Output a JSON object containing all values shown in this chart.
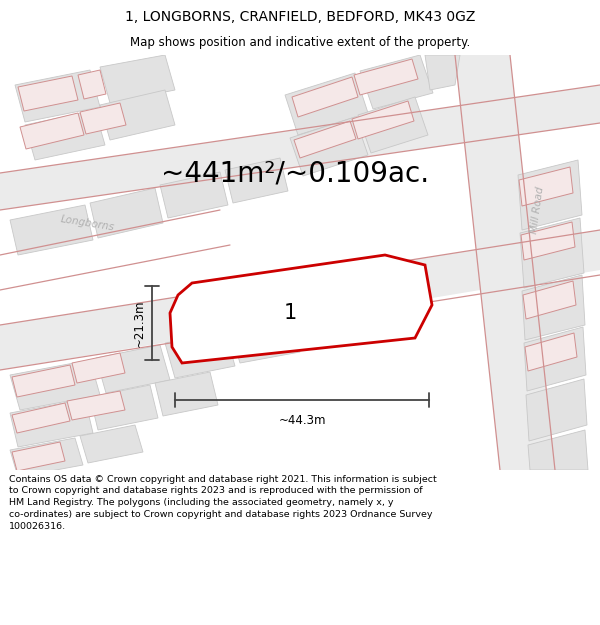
{
  "title": "1, LONGBORNS, CRANFIELD, BEDFORD, MK43 0GZ",
  "subtitle": "Map shows position and indicative extent of the property.",
  "footer": "Contains OS data © Crown copyright and database right 2021. This information is subject to Crown copyright and database rights 2023 and is reproduced with the permission of HM Land Registry. The polygons (including the associated geometry, namely x, y co-ordinates) are subject to Crown copyright and database rights 2023 Ordnance Survey 100026316.",
  "area_text": "~441m²/~0.109ac.",
  "width_label": "~44.3m",
  "height_label": "~21.3m",
  "property_number": "1",
  "map_bg": "#f7f7f7",
  "bld_fill": "#e2e2e2",
  "bld_edge": "#c8c8c8",
  "pink_fill": "#f5e8e8",
  "road_stroke": "#d09090",
  "property_stroke": "#cc0000",
  "property_fill": "#ffffff",
  "dim_color": "#444444",
  "street_color": "#b0b0b0"
}
